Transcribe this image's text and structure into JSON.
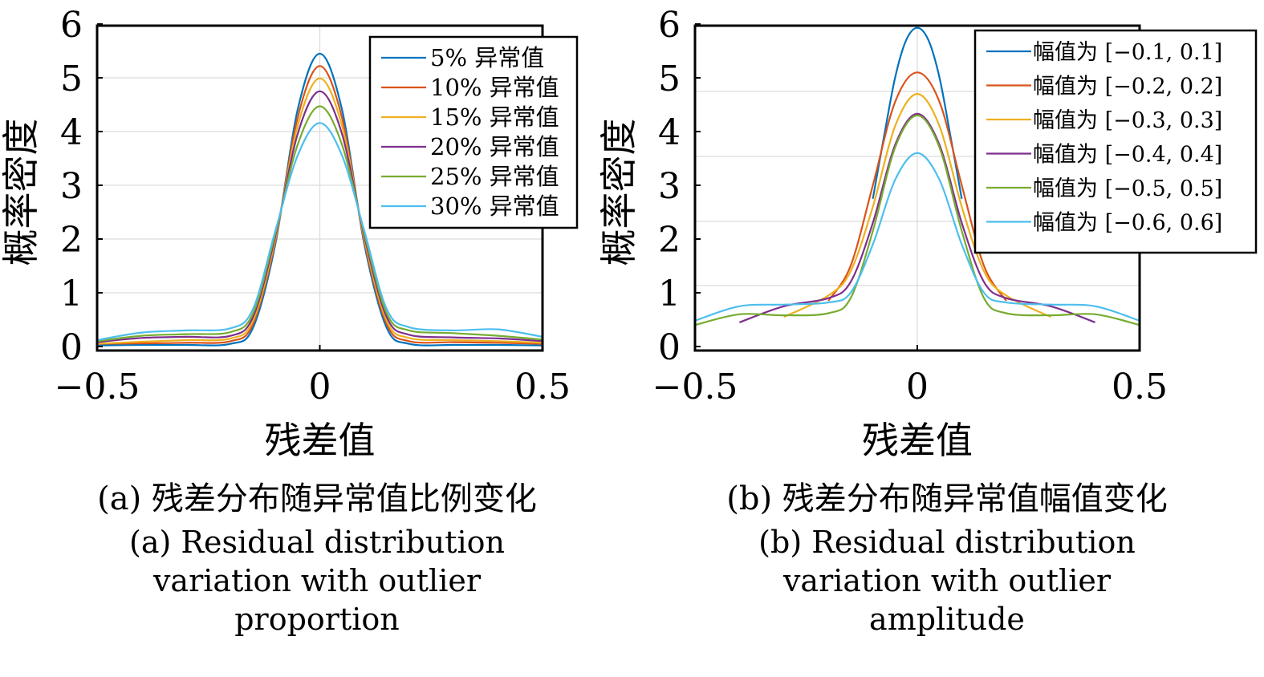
{
  "chart_data": [
    {
      "id": "a",
      "type": "line",
      "xlabel": "残差值",
      "ylabel": "概率密度",
      "xlim": [
        -0.5,
        0.5
      ],
      "ylim": [
        0,
        6
      ],
      "x_ticks": [
        "−0.5",
        "0",
        "0.5"
      ],
      "x_tick_values": [
        -0.5,
        0,
        0.5
      ],
      "y_ticks": [
        "0",
        "1",
        "2",
        "3",
        "4",
        "5",
        "6"
      ],
      "y_tick_values": [
        0,
        1,
        2,
        3,
        4,
        5,
        6
      ],
      "grid": true,
      "legend_position": "top-right",
      "x": [
        -0.5,
        -0.4,
        -0.3,
        -0.2,
        -0.15,
        -0.1,
        -0.05,
        0,
        0.05,
        0.1,
        0.15,
        0.2,
        0.3,
        0.4,
        0.5
      ],
      "series": [
        {
          "name": "5% 异常值",
          "color": "#0072BD",
          "values": [
            0.02,
            0.03,
            0.03,
            0.05,
            0.35,
            1.9,
            4.4,
            5.45,
            4.4,
            1.9,
            0.35,
            0.05,
            0.03,
            0.03,
            0.02
          ]
        },
        {
          "name": "10% 异常值",
          "color": "#D95319",
          "values": [
            0.05,
            0.06,
            0.07,
            0.1,
            0.42,
            1.95,
            4.25,
            5.22,
            4.25,
            1.95,
            0.42,
            0.1,
            0.08,
            0.07,
            0.05
          ]
        },
        {
          "name": "15% 异常值",
          "color": "#EDB120",
          "values": [
            0.05,
            0.09,
            0.12,
            0.15,
            0.48,
            2.0,
            4.1,
            4.99,
            4.1,
            2.0,
            0.48,
            0.16,
            0.12,
            0.1,
            0.07
          ]
        },
        {
          "name": "20% 异常值",
          "color": "#7E2F8E",
          "values": [
            0.08,
            0.16,
            0.18,
            0.2,
            0.55,
            2.05,
            3.95,
            4.75,
            3.95,
            2.05,
            0.55,
            0.22,
            0.17,
            0.15,
            0.1
          ]
        },
        {
          "name": "25% 异常值",
          "color": "#77AC30",
          "values": [
            0.1,
            0.2,
            0.23,
            0.27,
            0.62,
            2.1,
            3.75,
            4.47,
            3.75,
            2.1,
            0.62,
            0.3,
            0.25,
            0.2,
            0.13
          ]
        },
        {
          "name": "30% 异常值",
          "color": "#4DBEEE",
          "values": [
            0.12,
            0.26,
            0.3,
            0.34,
            0.7,
            2.15,
            3.55,
            4.16,
            3.55,
            2.15,
            0.7,
            0.36,
            0.3,
            0.32,
            0.18
          ]
        }
      ]
    },
    {
      "id": "b",
      "type": "line",
      "xlabel": "残差值",
      "ylabel": "概率密度",
      "xlim": [
        -0.5,
        0.5
      ],
      "ylim": [
        0,
        6
      ],
      "x_ticks": [
        "−0.5",
        "0",
        "0.5"
      ],
      "x_tick_values": [
        -0.5,
        0,
        0.5
      ],
      "y_ticks": [
        "0",
        "1",
        "2",
        "3",
        "4",
        "5",
        "6"
      ],
      "y_tick_values": [
        0,
        1,
        2,
        3,
        4,
        5,
        6
      ],
      "grid": true,
      "legend_position": "top-right",
      "series": [
        {
          "name": "幅值为 [−0.1, 0.1]",
          "color": "#0072BD",
          "x": [
            -0.1,
            -0.075,
            -0.05,
            -0.025,
            0,
            0.025,
            0.05,
            0.075,
            0.1
          ],
          "values": [
            2.75,
            3.9,
            5.0,
            5.7,
            5.93,
            5.7,
            5.0,
            3.9,
            2.75
          ]
        },
        {
          "name": "幅值为 [−0.2, 0.2]",
          "color": "#D95319",
          "x": [
            -0.2,
            -0.15,
            -0.1,
            -0.05,
            0,
            0.05,
            0.1,
            0.15,
            0.2
          ],
          "values": [
            0.85,
            1.5,
            3.0,
            4.55,
            5.1,
            4.55,
            3.0,
            1.5,
            0.85
          ]
        },
        {
          "name": "幅值为 [−0.3, 0.3]",
          "color": "#EDB120",
          "x": [
            -0.3,
            -0.2,
            -0.15,
            -0.1,
            -0.05,
            0,
            0.05,
            0.1,
            0.15,
            0.2,
            0.3
          ],
          "values": [
            0.55,
            0.95,
            1.4,
            2.6,
            4.1,
            4.7,
            4.1,
            2.6,
            1.4,
            0.95,
            0.55
          ]
        },
        {
          "name": "幅值为 [−0.4, 0.4]",
          "color": "#7E2F8E",
          "x": [
            -0.4,
            -0.3,
            -0.2,
            -0.15,
            -0.1,
            -0.05,
            0,
            0.05,
            0.1,
            0.15,
            0.2,
            0.3,
            0.4
          ],
          "values": [
            0.45,
            0.75,
            0.9,
            1.2,
            2.3,
            3.75,
            4.33,
            3.75,
            2.3,
            1.2,
            0.9,
            0.75,
            0.45
          ]
        },
        {
          "name": "幅值为 [−0.5, 0.5]",
          "color": "#77AC30",
          "x": [
            -0.5,
            -0.4,
            -0.3,
            -0.2,
            -0.15,
            -0.1,
            -0.05,
            0,
            0.05,
            0.1,
            0.15,
            0.2,
            0.3,
            0.4,
            0.5
          ],
          "values": [
            0.4,
            0.6,
            0.58,
            0.62,
            0.9,
            2.15,
            3.7,
            4.3,
            3.7,
            2.15,
            0.9,
            0.62,
            0.58,
            0.6,
            0.4
          ]
        },
        {
          "name": "幅值为 [−0.6, 0.6]",
          "color": "#4DBEEE",
          "x": [
            -0.5,
            -0.4,
            -0.3,
            -0.2,
            -0.15,
            -0.1,
            -0.05,
            0,
            0.05,
            0.1,
            0.15,
            0.2,
            0.3,
            0.4,
            0.5
          ],
          "values": [
            0.48,
            0.75,
            0.78,
            0.82,
            1.0,
            1.9,
            3.1,
            3.6,
            3.1,
            1.9,
            1.0,
            0.82,
            0.78,
            0.75,
            0.48
          ]
        }
      ]
    }
  ],
  "captions": {
    "a_cn": "(a) 残差分布随异常值比例变化",
    "a_en": "(a) Residual distribution variation with outlier proportion",
    "b_cn": "(b) 残差分布随异常值幅值变化",
    "b_en": "(b) Residual distribution variation with outlier amplitude"
  }
}
